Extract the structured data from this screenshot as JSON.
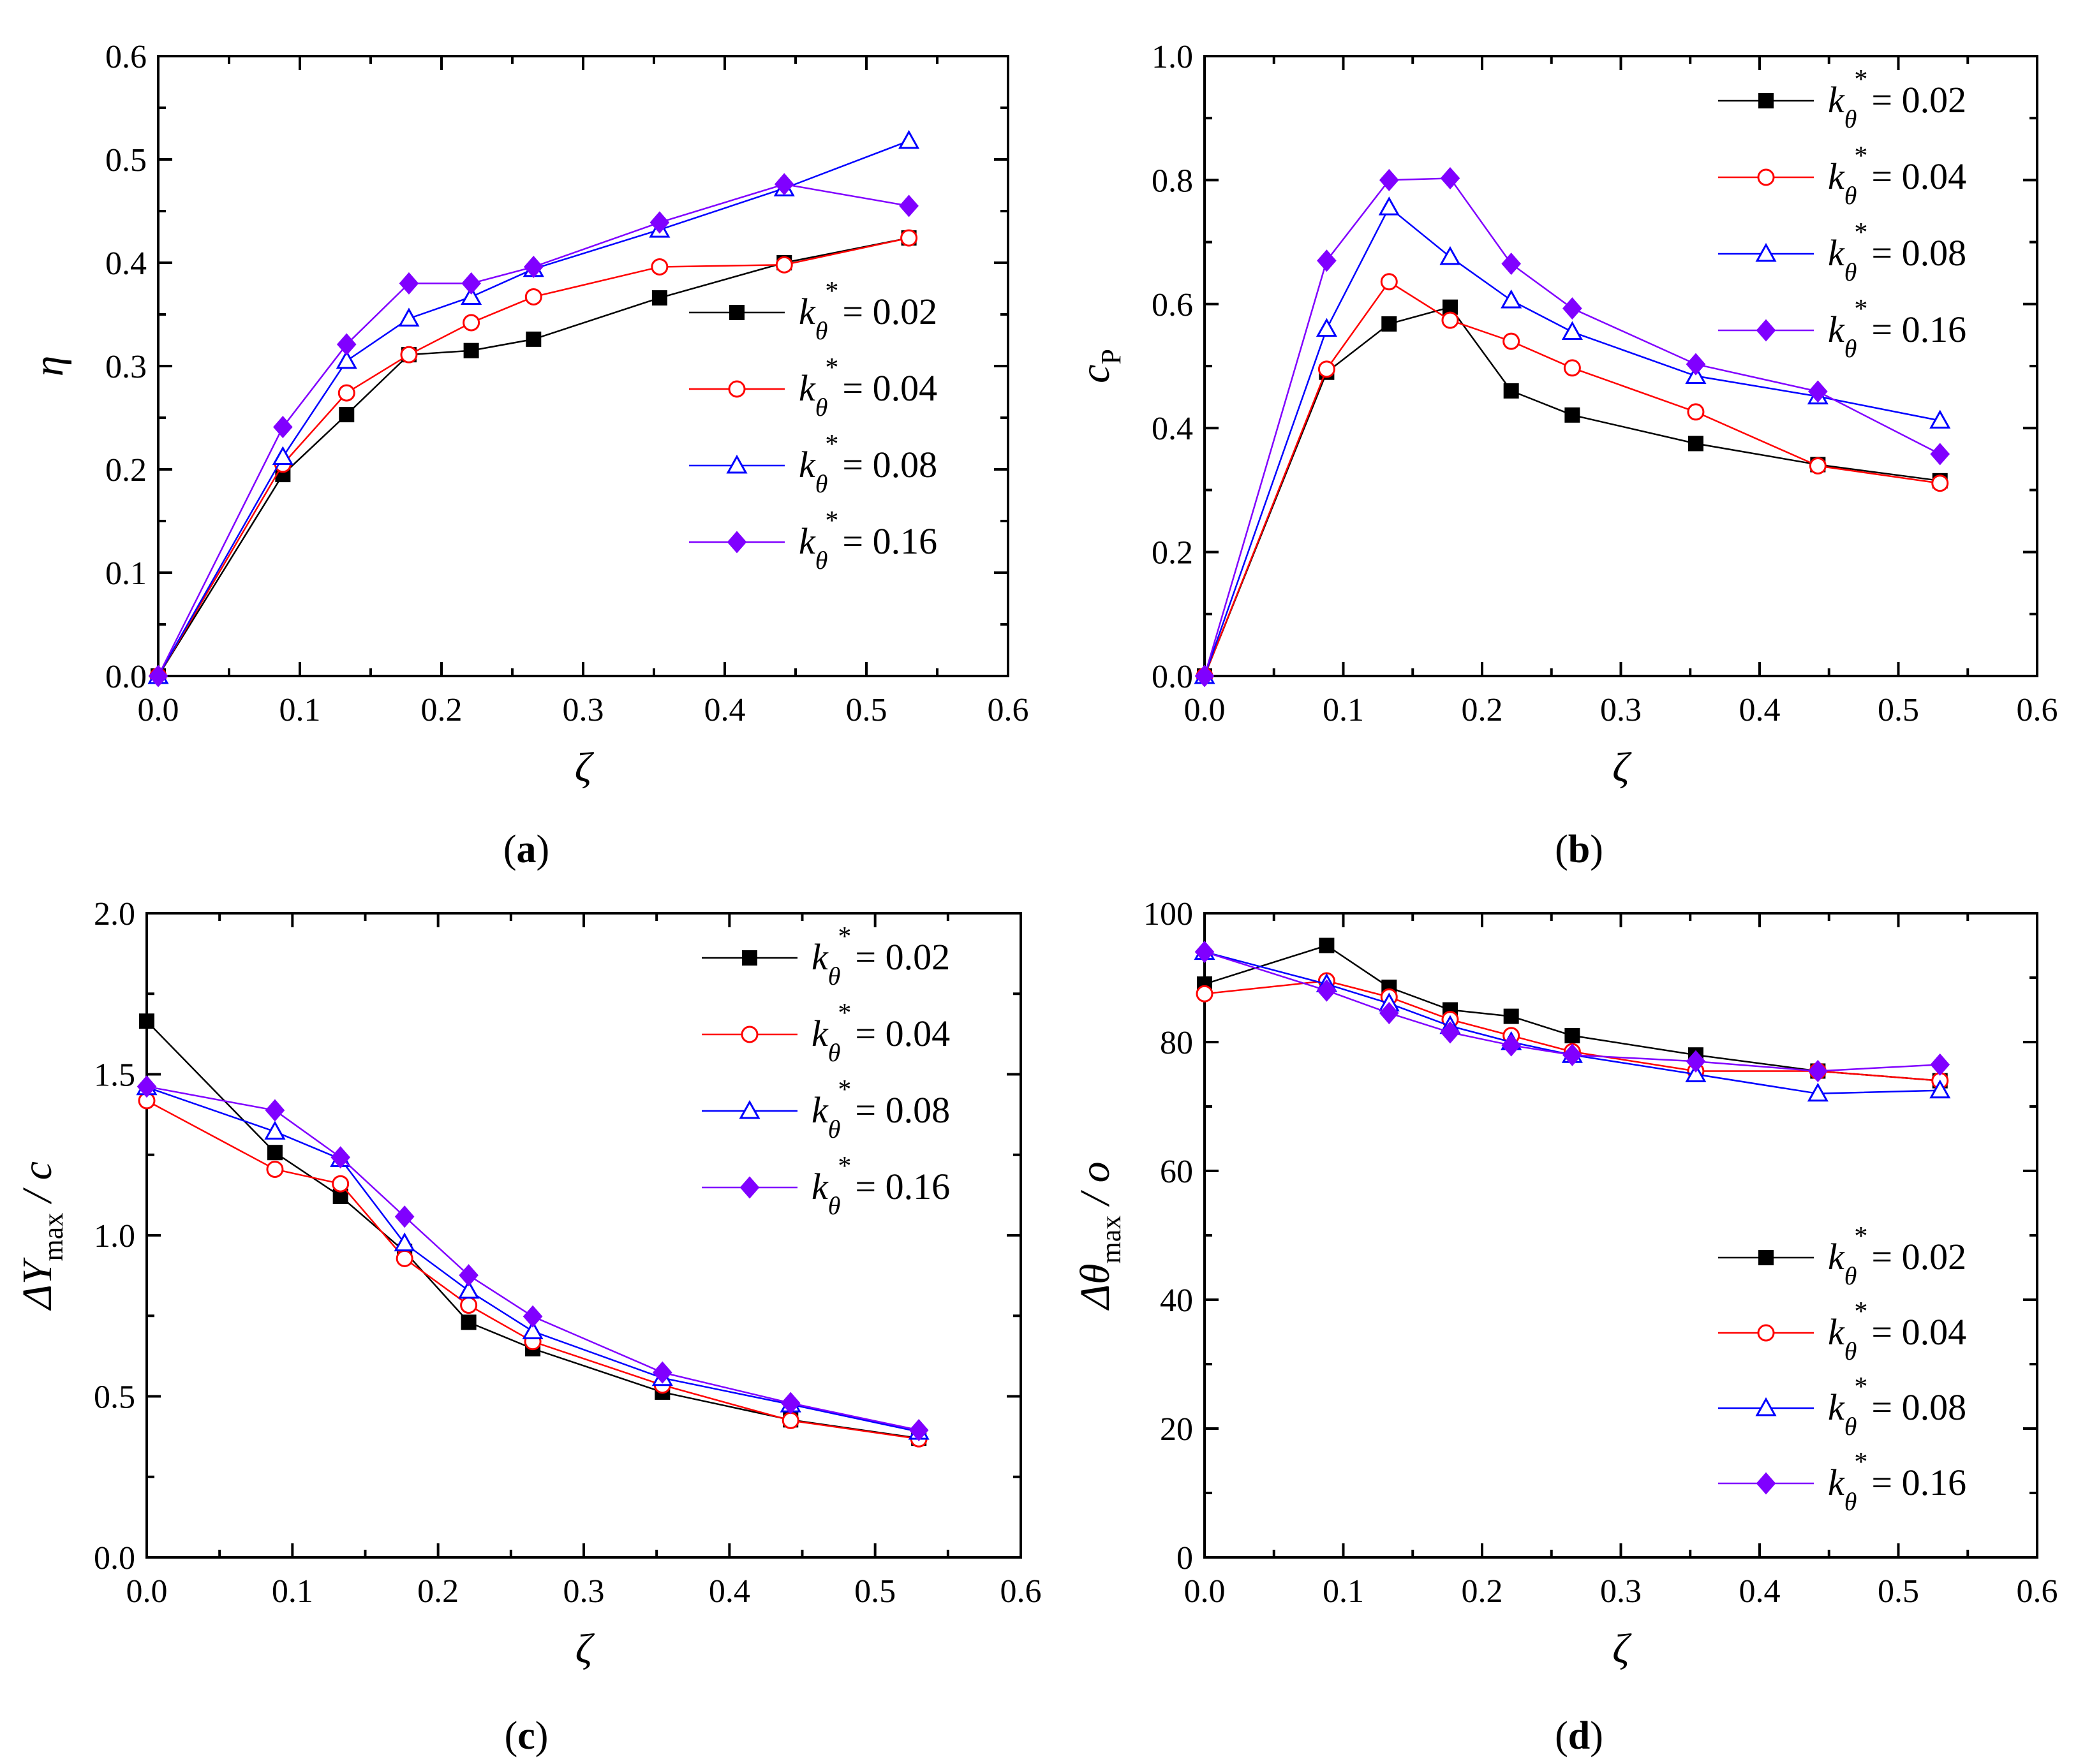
{
  "chart_data": [
    {
      "type": "line",
      "panel": "a",
      "panel_label": "(a)",
      "xlabel": "ζ",
      "ylabel": "η",
      "ylabel_sub": "",
      "ylabel_suffix": "",
      "xlim": [
        0,
        0.6
      ],
      "ylim": [
        0,
        0.6
      ],
      "x_ticks": [
        0.0,
        0.1,
        0.2,
        0.3,
        0.4,
        0.5,
        0.6
      ],
      "x_tick_labels": [
        "0.0",
        "0.1",
        "0.2",
        "0.3",
        "0.4",
        "0.5",
        "0.6"
      ],
      "y_ticks": [
        0.0,
        0.1,
        0.2,
        0.3,
        0.4,
        0.5,
        0.6
      ],
      "y_tick_labels": [
        "0.0",
        "0.1",
        "0.2",
        "0.3",
        "0.4",
        "0.5",
        "0.6"
      ],
      "legend_position": "lower-right",
      "x": [
        0,
        0.088,
        0.133,
        0.177,
        0.221,
        0.265,
        0.354,
        0.442,
        0.53
      ],
      "series": [
        {
          "name": "kθ* = 0.02",
          "value_label": "= 0.02",
          "color": "#000000",
          "marker": "square-filled",
          "values": [
            0,
            0.195,
            0.253,
            0.311,
            0.315,
            0.326,
            0.366,
            0.4,
            0.424
          ]
        },
        {
          "name": "kθ* = 0.04",
          "value_label": "= 0.04",
          "color": "#ff0000",
          "marker": "circle-open",
          "values": [
            0,
            0.205,
            0.274,
            0.311,
            0.342,
            0.367,
            0.396,
            0.398,
            0.424
          ]
        },
        {
          "name": "kθ* = 0.08",
          "value_label": "= 0.08",
          "color": "#0000ff",
          "marker": "triangle-open",
          "values": [
            0,
            0.212,
            0.305,
            0.346,
            0.367,
            0.394,
            0.432,
            0.472,
            0.518
          ]
        },
        {
          "name": "kθ* = 0.16",
          "value_label": "= 0.16",
          "color": "#8000ff",
          "marker": "diamond-filled",
          "values": [
            0,
            0.241,
            0.321,
            0.38,
            0.38,
            0.396,
            0.439,
            0.476,
            0.455
          ]
        }
      ]
    },
    {
      "type": "line",
      "panel": "b",
      "panel_label": "(b)",
      "xlabel": "ζ",
      "ylabel": "c",
      "ylabel_sub": "P",
      "ylabel_suffix": "",
      "xlim": [
        0,
        0.6
      ],
      "ylim": [
        0,
        1.0
      ],
      "x_ticks": [
        0.0,
        0.1,
        0.2,
        0.3,
        0.4,
        0.5,
        0.6
      ],
      "x_tick_labels": [
        "0.0",
        "0.1",
        "0.2",
        "0.3",
        "0.4",
        "0.5",
        "0.6"
      ],
      "y_ticks": [
        0.0,
        0.2,
        0.4,
        0.6,
        0.8,
        1.0
      ],
      "y_tick_labels": [
        "0.0",
        "0.2",
        "0.4",
        "0.6",
        "0.8",
        "1.0"
      ],
      "legend_position": "top-right",
      "x": [
        0,
        0.088,
        0.133,
        0.177,
        0.221,
        0.265,
        0.354,
        0.442,
        0.53
      ],
      "series": [
        {
          "name": "kθ* = 0.02",
          "value_label": "= 0.02",
          "color": "#000000",
          "marker": "square-filled",
          "values": [
            0,
            0.49,
            0.568,
            0.595,
            0.46,
            0.421,
            0.375,
            0.341,
            0.315
          ]
        },
        {
          "name": "kθ* = 0.04",
          "value_label": "= 0.04",
          "color": "#ff0000",
          "marker": "circle-open",
          "values": [
            0,
            0.495,
            0.636,
            0.574,
            0.54,
            0.497,
            0.426,
            0.339,
            0.311
          ]
        },
        {
          "name": "kθ* = 0.08",
          "value_label": "= 0.08",
          "color": "#0000ff",
          "marker": "triangle-open",
          "values": [
            0,
            0.56,
            0.756,
            0.676,
            0.606,
            0.555,
            0.484,
            0.451,
            0.412
          ]
        },
        {
          "name": "kθ* = 0.16",
          "value_label": "= 0.16",
          "color": "#8000ff",
          "marker": "diamond-filled",
          "values": [
            0,
            0.67,
            0.8,
            0.803,
            0.665,
            0.593,
            0.503,
            0.459,
            0.358
          ]
        }
      ]
    },
    {
      "type": "line",
      "panel": "c",
      "panel_label": "(c)",
      "xlabel": "ζ",
      "ylabel": "ΔY",
      "ylabel_sub": "max",
      "ylabel_suffix": " / c",
      "xlim": [
        0,
        0.6
      ],
      "ylim": [
        0,
        2.0
      ],
      "x_ticks": [
        0.0,
        0.1,
        0.2,
        0.3,
        0.4,
        0.5,
        0.6
      ],
      "x_tick_labels": [
        "0.0",
        "0.1",
        "0.2",
        "0.3",
        "0.4",
        "0.5",
        "0.6"
      ],
      "y_ticks": [
        0.0,
        0.5,
        1.0,
        1.5,
        2.0
      ],
      "y_tick_labels": [
        "0.0",
        "0.5",
        "1.0",
        "1.5",
        "2.0"
      ],
      "legend_position": "top-right",
      "x": [
        0,
        0.088,
        0.133,
        0.177,
        0.221,
        0.265,
        0.354,
        0.442,
        0.53
      ],
      "series": [
        {
          "name": "kθ* = 0.02",
          "value_label": "= 0.02",
          "color": "#000000",
          "marker": "square-filled",
          "values": [
            1.665,
            1.257,
            1.121,
            0.95,
            0.73,
            0.648,
            0.513,
            0.427,
            0.37
          ]
        },
        {
          "name": "kθ* = 0.04",
          "value_label": "= 0.04",
          "color": "#ff0000",
          "marker": "circle-open",
          "values": [
            1.418,
            1.205,
            1.16,
            0.928,
            0.783,
            0.67,
            0.535,
            0.425,
            0.368
          ]
        },
        {
          "name": "kθ* = 0.08",
          "value_label": "= 0.08",
          "color": "#0000ff",
          "marker": "triangle-open",
          "values": [
            1.46,
            1.322,
            1.237,
            0.975,
            0.828,
            0.702,
            0.557,
            0.475,
            0.39
          ]
        },
        {
          "name": "kθ* = 0.16",
          "value_label": "= 0.16",
          "color": "#8000ff",
          "marker": "diamond-filled",
          "values": [
            1.462,
            1.388,
            1.242,
            1.058,
            0.876,
            0.748,
            0.574,
            0.479,
            0.395
          ]
        }
      ]
    },
    {
      "type": "line",
      "panel": "d",
      "panel_label": "(d)",
      "xlabel": "ζ",
      "ylabel": "Δθ",
      "ylabel_sub": "max",
      "ylabel_suffix": " / o",
      "xlim": [
        0,
        0.6
      ],
      "ylim": [
        0,
        100
      ],
      "x_ticks": [
        0.0,
        0.1,
        0.2,
        0.3,
        0.4,
        0.5,
        0.6
      ],
      "x_tick_labels": [
        "0.0",
        "0.1",
        "0.2",
        "0.3",
        "0.4",
        "0.5",
        "0.6"
      ],
      "y_ticks": [
        0,
        20,
        40,
        60,
        80,
        100
      ],
      "y_tick_labels": [
        "0",
        "20",
        "40",
        "60",
        "80",
        "100"
      ],
      "legend_position": "bottom-right",
      "x": [
        0,
        0.088,
        0.133,
        0.177,
        0.221,
        0.265,
        0.354,
        0.442,
        0.53
      ],
      "series": [
        {
          "name": "kθ* = 0.02",
          "value_label": "= 0.02",
          "color": "#000000",
          "marker": "square-filled",
          "values": [
            89.0,
            95.0,
            88.5,
            85.0,
            84.0,
            81.0,
            78.0,
            75.5,
            74.0
          ]
        },
        {
          "name": "kθ* = 0.04",
          "value_label": "= 0.04",
          "color": "#ff0000",
          "marker": "circle-open",
          "values": [
            87.5,
            89.5,
            87.0,
            83.5,
            81.0,
            78.5,
            75.5,
            75.5,
            74.0
          ]
        },
        {
          "name": "kθ* = 0.08",
          "value_label": "= 0.08",
          "color": "#0000ff",
          "marker": "triangle-open",
          "values": [
            94.0,
            89.0,
            86.0,
            82.5,
            80.0,
            78.0,
            75.0,
            72.0,
            72.5
          ]
        },
        {
          "name": "kθ* = 0.16",
          "value_label": "= 0.16",
          "color": "#8000ff",
          "marker": "diamond-filled",
          "values": [
            94.0,
            88.0,
            84.5,
            81.5,
            79.5,
            78.0,
            77.0,
            75.5,
            76.5
          ]
        }
      ]
    }
  ]
}
